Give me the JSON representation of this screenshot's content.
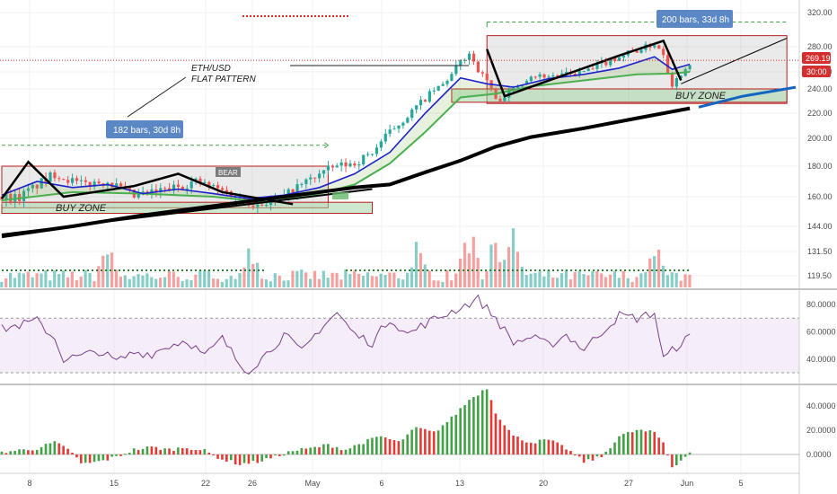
{
  "chart_data": [
    {
      "type": "candlestick",
      "name": "price",
      "ylim": [
        112,
        328
      ],
      "y_ticks": [
        "320.00",
        "280.00",
        "260.00",
        "240.00",
        "220.00",
        "200.00",
        "180.00",
        "160.00",
        "144.00",
        "131.50",
        "119.50"
      ],
      "x_ticks": [
        "8",
        "15",
        "22",
        "26",
        "May",
        "6",
        "13",
        "20",
        "27",
        "Jun",
        "5"
      ],
      "last_price": "269.19",
      "countdown": "30:00",
      "price_path": [
        [
          2,
          160
        ],
        [
          6,
          175
        ],
        [
          9,
          168
        ],
        [
          12,
          170
        ],
        [
          15,
          160
        ],
        [
          19,
          165
        ],
        [
          22,
          170
        ],
        [
          26,
          162
        ],
        [
          29,
          156
        ],
        [
          32,
          160
        ],
        [
          34,
          168
        ],
        [
          36,
          175
        ],
        [
          38,
          180
        ],
        [
          40,
          182
        ],
        [
          42,
          190
        ],
        [
          44,
          205
        ],
        [
          46,
          218
        ],
        [
          48,
          232
        ],
        [
          50,
          245
        ],
        [
          52,
          268
        ],
        [
          53,
          275
        ],
        [
          54,
          262
        ],
        [
          55,
          250
        ],
        [
          56,
          230
        ],
        [
          58,
          240
        ],
        [
          60,
          256
        ],
        [
          62,
          255
        ],
        [
          65,
          258
        ],
        [
          67,
          262
        ],
        [
          69,
          270
        ],
        [
          71,
          275
        ],
        [
          73,
          280
        ],
        [
          74,
          283
        ],
        [
          75,
          275
        ],
        [
          76,
          245
        ],
        [
          77,
          258
        ],
        [
          78,
          268
        ]
      ],
      "ema_blue": [
        [
          0,
          161
        ],
        [
          4,
          170
        ],
        [
          8,
          166
        ],
        [
          12,
          168
        ],
        [
          16,
          162
        ],
        [
          20,
          165
        ],
        [
          24,
          162
        ],
        [
          28,
          159
        ],
        [
          32,
          161
        ],
        [
          36,
          166
        ],
        [
          40,
          175
        ],
        [
          44,
          190
        ],
        [
          48,
          220
        ],
        [
          52,
          253
        ],
        [
          55,
          246
        ],
        [
          58,
          242
        ],
        [
          62,
          252
        ],
        [
          66,
          257
        ],
        [
          70,
          263
        ],
        [
          74,
          272
        ],
        [
          76,
          262
        ],
        [
          78,
          266
        ]
      ],
      "ema_green": [
        [
          0,
          158
        ],
        [
          8,
          163
        ],
        [
          16,
          162
        ],
        [
          24,
          160
        ],
        [
          30,
          157
        ],
        [
          36,
          162
        ],
        [
          40,
          168
        ],
        [
          44,
          182
        ],
        [
          48,
          205
        ],
        [
          52,
          233
        ],
        [
          56,
          236
        ],
        [
          60,
          243
        ],
        [
          66,
          250
        ],
        [
          72,
          257
        ],
        [
          76,
          258
        ],
        [
          78,
          260
        ]
      ],
      "ma_black": [
        [
          0,
          139
        ],
        [
          8,
          144
        ],
        [
          16,
          150
        ],
        [
          24,
          155
        ],
        [
          32,
          160
        ],
        [
          40,
          166
        ],
        [
          44,
          168
        ],
        [
          48,
          176
        ],
        [
          52,
          184
        ],
        [
          56,
          194
        ],
        [
          60,
          201
        ],
        [
          66,
          208
        ],
        [
          72,
          216
        ],
        [
          78,
          224
        ]
      ],
      "ma_blue_projection": [
        [
          79,
          225
        ],
        [
          84,
          234
        ],
        [
          90,
          242
        ]
      ],
      "pattern_path": [
        [
          0,
          159
        ],
        [
          3,
          183
        ],
        [
          7,
          160
        ],
        [
          15,
          167
        ],
        [
          20,
          175
        ],
        [
          25,
          163
        ],
        [
          33,
          156
        ]
      ],
      "trend_line": [
        [
          0,
          140
        ],
        [
          42,
          165
        ]
      ],
      "wave_path": [
        [
          55,
          278
        ],
        [
          57,
          234
        ],
        [
          70,
          273
        ],
        [
          75,
          287
        ],
        [
          77,
          250
        ]
      ],
      "channel_line": [
        [
          77,
          246
        ],
        [
          89,
          290
        ]
      ],
      "boxes": [
        {
          "x": [
            0,
            37
          ],
          "y": [
            154,
            180
          ]
        },
        {
          "x": [
            55,
            89
          ],
          "y": [
            228,
            293
          ]
        }
      ],
      "buy_zones": [
        {
          "x": [
            0,
            42
          ],
          "y": [
            151,
            157
          ],
          "label": "BUY ZONE"
        },
        {
          "x": [
            51,
            89
          ],
          "y": [
            229,
            240
          ],
          "label": "BUY ZONE"
        }
      ],
      "measure_left": {
        "label": "182 bars, 30d 8h",
        "range": [
          0,
          37
        ],
        "level": 195
      },
      "measure_right": {
        "label": "200 bars, 33d 8h",
        "range": [
          55,
          89
        ],
        "level": 309
      },
      "note_line1": "ETH/USD",
      "note_line2": "FLAT PATTERN",
      "bear_tag": "BEAR",
      "colors": {
        "up": "#26a69a",
        "down": "#ef5350",
        "ema_blue": "#1e22c9",
        "ema_green": "#4caf50",
        "ma_black": "#000000",
        "projection": "#1565c0",
        "box": "#bdbdbd",
        "zone": "#a5d6a7",
        "zone_border": "#b71c1c",
        "tag": "#d32f2f",
        "measure": "#5b87c4"
      }
    },
    {
      "type": "bar",
      "name": "volume",
      "peaks": [
        [
          12,
          0.6
        ],
        [
          28,
          0.45
        ],
        [
          47,
          0.5
        ],
        [
          53,
          0.85
        ],
        [
          56,
          0.95
        ],
        [
          58,
          0.7
        ],
        [
          74,
          0.7
        ]
      ]
    },
    {
      "type": "line",
      "name": "RSI",
      "ylim": [
        28,
        88
      ],
      "y_ticks": [
        "80.0000",
        "60.0000",
        "40.0000"
      ],
      "band": [
        30,
        70
      ],
      "values": [
        [
          0,
          62
        ],
        [
          2,
          65
        ],
        [
          4,
          68
        ],
        [
          6,
          55
        ],
        [
          7,
          40
        ],
        [
          9,
          42
        ],
        [
          11,
          46
        ],
        [
          13,
          38
        ],
        [
          15,
          45
        ],
        [
          17,
          44
        ],
        [
          19,
          50
        ],
        [
          21,
          54
        ],
        [
          23,
          42
        ],
        [
          25,
          55
        ],
        [
          27,
          36
        ],
        [
          28,
          32
        ],
        [
          30,
          44
        ],
        [
          32,
          58
        ],
        [
          34,
          45
        ],
        [
          36,
          62
        ],
        [
          38,
          74
        ],
        [
          40,
          58
        ],
        [
          42,
          52
        ],
        [
          44,
          70
        ],
        [
          46,
          58
        ],
        [
          48,
          66
        ],
        [
          50,
          72
        ],
        [
          52,
          78
        ],
        [
          54,
          84
        ],
        [
          56,
          70
        ],
        [
          58,
          52
        ],
        [
          60,
          56
        ],
        [
          62,
          50
        ],
        [
          64,
          58
        ],
        [
          66,
          47
        ],
        [
          68,
          60
        ],
        [
          70,
          72
        ],
        [
          72,
          70
        ],
        [
          74,
          74
        ],
        [
          75,
          40
        ],
        [
          77,
          52
        ],
        [
          78,
          56
        ]
      ]
    },
    {
      "type": "bar",
      "name": "MACD histogram",
      "ylim": [
        -12,
        58
      ],
      "y_ticks": [
        "40.0000",
        "20.0000",
        "0.0000"
      ],
      "profile": [
        [
          0,
          2
        ],
        [
          4,
          5
        ],
        [
          6,
          10
        ],
        [
          8,
          2
        ],
        [
          9,
          -8
        ],
        [
          11,
          -6
        ],
        [
          13,
          -2
        ],
        [
          15,
          4
        ],
        [
          17,
          6
        ],
        [
          19,
          4
        ],
        [
          21,
          6
        ],
        [
          23,
          3
        ],
        [
          25,
          -4
        ],
        [
          27,
          -8
        ],
        [
          29,
          -6
        ],
        [
          31,
          -2
        ],
        [
          33,
          3
        ],
        [
          35,
          5
        ],
        [
          37,
          8
        ],
        [
          39,
          4
        ],
        [
          41,
          10
        ],
        [
          43,
          15
        ],
        [
          45,
          10
        ],
        [
          47,
          22
        ],
        [
          49,
          18
        ],
        [
          51,
          30
        ],
        [
          53,
          45
        ],
        [
          55,
          55
        ],
        [
          56,
          35
        ],
        [
          58,
          15
        ],
        [
          60,
          10
        ],
        [
          62,
          12
        ],
        [
          64,
          5
        ],
        [
          66,
          -6
        ],
        [
          68,
          -2
        ],
        [
          70,
          15
        ],
        [
          72,
          20
        ],
        [
          74,
          18
        ],
        [
          75,
          10
        ],
        [
          76,
          -10
        ],
        [
          77,
          -5
        ],
        [
          78,
          2
        ]
      ]
    }
  ]
}
